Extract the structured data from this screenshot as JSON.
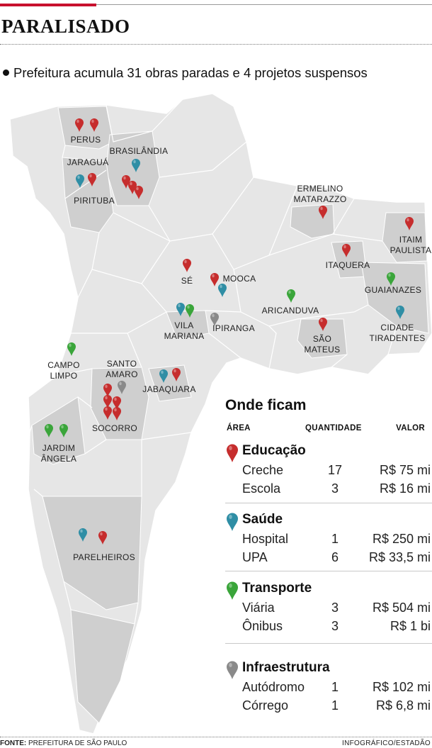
{
  "header": {
    "title": "PARALISADO",
    "subtitle": "Prefeitura acumula 31 obras paradas e 4 projetos suspensos"
  },
  "colors": {
    "accent": "#c8102e",
    "educacao": "#c62d2d",
    "saude": "#2f8ea5",
    "transporte": "#3aa53a",
    "infraestrutura": "#8a8a8a",
    "map_fill": "#e6e6e6",
    "district_fill": "#cfcfcf"
  },
  "map": {
    "places": [
      {
        "id": "perus",
        "lines": [
          "PERUS"
        ]
      },
      {
        "id": "brasilandia",
        "lines": [
          "BRASILÂNDIA"
        ]
      },
      {
        "id": "jaragua",
        "lines": [
          "JARAGUÁ"
        ]
      },
      {
        "id": "pirituba",
        "lines": [
          "PIRITUBA"
        ]
      },
      {
        "id": "ermelino",
        "lines": [
          "ERMELINO",
          "MATARAZZO"
        ]
      },
      {
        "id": "itaim",
        "lines": [
          "ITAIM",
          "PAULISTA"
        ]
      },
      {
        "id": "itaquera",
        "lines": [
          "ITAQUERA"
        ]
      },
      {
        "id": "se",
        "lines": [
          "SÉ"
        ]
      },
      {
        "id": "mooca",
        "lines": [
          "MOOCA"
        ]
      },
      {
        "id": "guaianazes",
        "lines": [
          "GUAIANAZES"
        ]
      },
      {
        "id": "aricanduva",
        "lines": [
          "ARICANDUVA"
        ]
      },
      {
        "id": "vilamariana",
        "lines": [
          "VILA",
          "MARIANA"
        ]
      },
      {
        "id": "ipiranga",
        "lines": [
          "IPIRANGA"
        ]
      },
      {
        "id": "saomateus",
        "lines": [
          "SÃO",
          "MATEUS"
        ]
      },
      {
        "id": "cidadetiradentes",
        "lines": [
          "CIDADE",
          "TIRADENTES"
        ]
      },
      {
        "id": "campolimpo",
        "lines": [
          "CAMPO",
          "LIMPO"
        ]
      },
      {
        "id": "santoamaro",
        "lines": [
          "SANTO",
          "AMARO"
        ]
      },
      {
        "id": "jabaquara",
        "lines": [
          "JABAQUARA"
        ]
      },
      {
        "id": "socorro",
        "lines": [
          "SOCORRO"
        ]
      },
      {
        "id": "jardimangela",
        "lines": [
          "JARDIM",
          "ÂNGELA"
        ]
      },
      {
        "id": "parelheiros",
        "lines": [
          "PARELHEIROS"
        ]
      }
    ]
  },
  "panel": {
    "title": "Onde ficam",
    "headers": {
      "area": "ÁREA",
      "quantidade": "QUANTIDADE",
      "valor": "VALOR"
    },
    "categories": [
      {
        "name": "Educação",
        "icon": "red-pin-icon",
        "rows": [
          {
            "item": "Creche",
            "qty": "17",
            "value": "R$ 75 mi"
          },
          {
            "item": "Escola",
            "qty": "3",
            "value": "R$ 16 mi"
          }
        ]
      },
      {
        "name": "Saúde",
        "icon": "teal-pin-icon",
        "rows": [
          {
            "item": "Hospital",
            "qty": "1",
            "value": "R$ 250 mi"
          },
          {
            "item": "UPA",
            "qty": "6",
            "value": "R$ 33,5 mi"
          }
        ]
      },
      {
        "name": "Transporte",
        "icon": "green-pin-icon",
        "rows": [
          {
            "item": "Viária",
            "qty": "3",
            "value": "R$ 504 mi"
          },
          {
            "item": "Ônibus",
            "qty": "3",
            "value": "R$ 1 bi"
          }
        ]
      },
      {
        "name": "Infraestrutura",
        "icon": "gray-pin-icon",
        "rows": [
          {
            "item": "Autódromo",
            "qty": "1",
            "value": "R$ 102 mi"
          },
          {
            "item": "Córrego",
            "qty": "1",
            "value": "R$ 6,8 mi"
          }
        ]
      }
    ]
  },
  "footer": {
    "source_label": "FONTE:",
    "source": "PREFEITURA DE SÃO PAULO",
    "credit": "INFOGRÁFICO/ESTADÃO"
  }
}
